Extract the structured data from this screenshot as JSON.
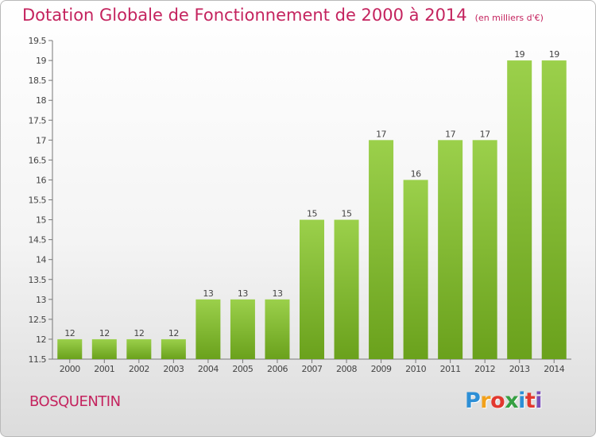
{
  "chart_data": {
    "type": "bar",
    "title": "Dotation Globale de Fonctionnement de 2000 à 2014",
    "subtitle": "(en milliers d'€)",
    "categories": [
      "2000",
      "2001",
      "2002",
      "2003",
      "2004",
      "2005",
      "2006",
      "2007",
      "2008",
      "2009",
      "2010",
      "2011",
      "2012",
      "2013",
      "2014"
    ],
    "values": [
      12,
      12,
      12,
      12,
      13,
      13,
      13,
      15,
      15,
      17,
      16,
      17,
      17,
      19,
      19
    ],
    "value_labels": [
      "12",
      "12",
      "12",
      "12",
      "13",
      "13",
      "13",
      "15",
      "15",
      "17",
      "16",
      "17",
      "17",
      "19",
      "19"
    ],
    "ylim": [
      11.5,
      19.5
    ],
    "yticks": [
      11.5,
      12,
      12.5,
      13,
      13.5,
      14,
      14.5,
      15,
      15.5,
      16,
      16.5,
      17,
      17.5,
      18,
      18.5,
      19,
      19.5
    ],
    "ytick_labels": [
      "11.5",
      "12",
      "12.5",
      "13",
      "13.5",
      "14",
      "14.5",
      "15",
      "15.5",
      "16",
      "16.5",
      "17",
      "17.5",
      "18",
      "18.5",
      "19",
      "19.5"
    ],
    "xlabel": "",
    "ylabel": "",
    "grid": false,
    "bar_color_top": "#9bd04b",
    "bar_color_bottom": "#6aa11c"
  },
  "footer": {
    "commune": "BOSQUENTIN"
  },
  "logo": {
    "letters": [
      "P",
      "r",
      "o",
      "x",
      "i",
      "t",
      "i"
    ],
    "colors": [
      "#2d8fd6",
      "#f2a11c",
      "#e2382f",
      "#36a043",
      "#2d8fd6",
      "#e2382f",
      "#7a4fb8"
    ]
  }
}
